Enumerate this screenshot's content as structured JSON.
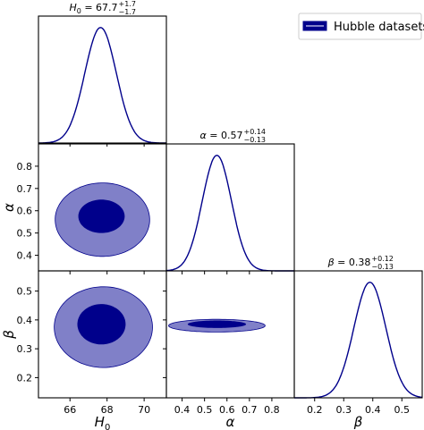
{
  "legend": {
    "label": "Hubble datasets",
    "color": "#00008B",
    "position": "top-right"
  },
  "colors": {
    "line": "#00008B",
    "contour_inner": "#00008B",
    "contour_outer": "#8080c8"
  },
  "chart_data": {
    "type": "corner",
    "parameters": [
      {
        "key": "H0",
        "label": "H",
        "sub": "0",
        "mean": 67.7,
        "err_plus": 1.7,
        "err_minus": 1.7,
        "title_main": "H",
        "title_sub": "0",
        "title_value": " = 67.7",
        "title_sup": "+1.7",
        "title_inf": "−1.7",
        "range": [
          64.3,
          71.2
        ],
        "ticks": [
          66,
          68,
          70
        ]
      },
      {
        "key": "alpha",
        "label": "α",
        "sub": "",
        "mean": 0.57,
        "err_plus": 0.14,
        "err_minus": 0.13,
        "title_main": "α",
        "title_sub": "",
        "title_value": " = 0.57",
        "title_sup": "+0.14",
        "title_inf": "−0.13",
        "range": [
          0.33,
          0.9
        ],
        "ticks": [
          0.4,
          0.5,
          0.6,
          0.7,
          0.8
        ]
      },
      {
        "key": "beta",
        "label": "β",
        "sub": "",
        "mean": 0.38,
        "err_plus": 0.12,
        "err_minus": 0.13,
        "title_main": "β",
        "title_sub": "",
        "title_value": " = 0.38",
        "title_sup": "+0.12",
        "title_inf": "−0.13",
        "range": [
          0.13,
          0.57
        ],
        "ticks": [
          0.2,
          0.3,
          0.4,
          0.5
        ]
      }
    ],
    "marginals": [
      {
        "param": "H0",
        "center": 67.65,
        "sigma": 0.85
      },
      {
        "param": "alpha",
        "center": 0.555,
        "sigma": 0.065
      },
      {
        "param": "beta",
        "center": 0.39,
        "sigma": 0.055
      }
    ],
    "contours": [
      {
        "x": "H0",
        "y": "alpha",
        "c68": {
          "cx": 67.7,
          "cy": 0.575,
          "rx": 1.25,
          "ry": 0.075,
          "angle": -38
        },
        "c95": {
          "cx": 67.75,
          "cy": 0.56,
          "rx": 2.55,
          "ry": 0.165,
          "angle": -36
        }
      },
      {
        "x": "H0",
        "y": "beta",
        "c68": {
          "cx": 67.7,
          "cy": 0.385,
          "rx": 1.3,
          "ry": 0.07,
          "angle": 35
        },
        "c95": {
          "cx": 67.8,
          "cy": 0.375,
          "rx": 2.65,
          "ry": 0.14,
          "angle": 33
        }
      },
      {
        "x": "alpha",
        "y": "beta",
        "c68": {
          "cx": 0.555,
          "cy": 0.385,
          "rx": 0.13,
          "ry": 0.013,
          "angle": -40
        },
        "c95": {
          "cx": 0.555,
          "cy": 0.38,
          "rx": 0.215,
          "ry": 0.022,
          "angle": -40
        }
      }
    ]
  }
}
